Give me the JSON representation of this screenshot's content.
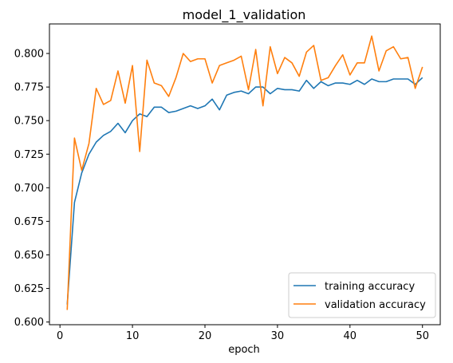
{
  "chart_data": {
    "type": "line",
    "title": "model_1_validation",
    "xlabel": "epoch",
    "ylabel": "",
    "xlim": [
      -1.45,
      52.45
    ],
    "ylim": [
      0.598,
      0.822
    ],
    "xticks": [
      0,
      10,
      20,
      30,
      40,
      50
    ],
    "yticks": [
      0.6,
      0.625,
      0.65,
      0.675,
      0.7,
      0.725,
      0.75,
      0.775,
      0.8
    ],
    "ytick_labels": [
      "0.600",
      "0.625",
      "0.650",
      "0.675",
      "0.700",
      "0.725",
      "0.750",
      "0.775",
      "0.800"
    ],
    "xtick_labels": [
      "0",
      "10",
      "20",
      "30",
      "40",
      "50"
    ],
    "grid": false,
    "legend_position": "lower-right",
    "x": [
      1,
      2,
      3,
      4,
      5,
      6,
      7,
      8,
      9,
      10,
      11,
      12,
      13,
      14,
      15,
      16,
      17,
      18,
      19,
      20,
      21,
      22,
      23,
      24,
      25,
      26,
      27,
      28,
      29,
      30,
      31,
      32,
      33,
      34,
      35,
      36,
      37,
      38,
      39,
      40,
      41,
      42,
      43,
      44,
      45,
      46,
      47,
      48,
      49,
      50
    ],
    "series": [
      {
        "name": "training accuracy",
        "color": "#1f77b4",
        "values": [
          0.613,
          0.689,
          0.711,
          0.725,
          0.734,
          0.739,
          0.742,
          0.748,
          0.741,
          0.75,
          0.755,
          0.753,
          0.76,
          0.76,
          0.756,
          0.757,
          0.759,
          0.761,
          0.759,
          0.761,
          0.766,
          0.758,
          0.769,
          0.771,
          0.772,
          0.77,
          0.775,
          0.775,
          0.77,
          0.774,
          0.773,
          0.773,
          0.772,
          0.78,
          0.774,
          0.779,
          0.776,
          0.778,
          0.778,
          0.777,
          0.78,
          0.777,
          0.781,
          0.779,
          0.779,
          0.781,
          0.781,
          0.781,
          0.777,
          0.782
        ]
      },
      {
        "name": "validation accuracy",
        "color": "#ff7f0e",
        "values": [
          0.609,
          0.737,
          0.713,
          0.733,
          0.774,
          0.762,
          0.765,
          0.787,
          0.763,
          0.791,
          0.727,
          0.795,
          0.778,
          0.776,
          0.768,
          0.782,
          0.8,
          0.794,
          0.796,
          0.796,
          0.778,
          0.791,
          0.793,
          0.795,
          0.798,
          0.773,
          0.803,
          0.761,
          0.805,
          0.785,
          0.797,
          0.793,
          0.783,
          0.801,
          0.806,
          0.78,
          0.782,
          0.791,
          0.799,
          0.784,
          0.793,
          0.793,
          0.813,
          0.787,
          0.802,
          0.805,
          0.796,
          0.797,
          0.774,
          0.79
        ]
      }
    ]
  }
}
